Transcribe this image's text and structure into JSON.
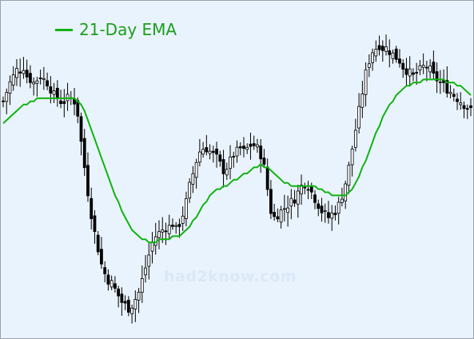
{
  "chart_data": {
    "type": "candlestick",
    "title": "",
    "xlabel": "",
    "ylabel": "",
    "grid": false,
    "legend_position": "top-left",
    "ylim": [
      0,
      100
    ],
    "ema_period": 21,
    "legend": {
      "label": "21-Day EMA"
    },
    "watermark": "had2know.com",
    "colors": {
      "background": "#e9f3fd",
      "border": "#9aa3ad",
      "candle": "#000000",
      "ema": "#11b311",
      "legend_text": "#1c9e1c",
      "watermark": "#dbe8f7"
    },
    "close_series": [
      73,
      76,
      79,
      81,
      83,
      83,
      84,
      81,
      80,
      79,
      80,
      81,
      80,
      79,
      77,
      75,
      74,
      73,
      73,
      74,
      74,
      73,
      69,
      60,
      52,
      44,
      37,
      31,
      26,
      21,
      18,
      16,
      15,
      13,
      11,
      9,
      8,
      7,
      8,
      10,
      12,
      16,
      20,
      24,
      28,
      30,
      31,
      32,
      33,
      33,
      34,
      32,
      34,
      37,
      41,
      46,
      50,
      54,
      57,
      58,
      58,
      57,
      56,
      55,
      53,
      51,
      52,
      54,
      56,
      57,
      58,
      57,
      58,
      59,
      59,
      58,
      56,
      52,
      45,
      38,
      36,
      37,
      38,
      39,
      40,
      41,
      42,
      44,
      46,
      47,
      46,
      44,
      42,
      40,
      38,
      37,
      36,
      37,
      38,
      40,
      43,
      47,
      52,
      58,
      64,
      70,
      76,
      82,
      86,
      89,
      90,
      91,
      90,
      90,
      89,
      88,
      87,
      86,
      84,
      83,
      82,
      81,
      82,
      83,
      84,
      84,
      83,
      81,
      80,
      79,
      78,
      77,
      76,
      75,
      74,
      73,
      72,
      71,
      70
    ],
    "ema_series": [
      66,
      67,
      68,
      69,
      70,
      71,
      72,
      72,
      73,
      73,
      74,
      74,
      74,
      74,
      74,
      74,
      74,
      74,
      74,
      74,
      74,
      74,
      73,
      72,
      70,
      67,
      64,
      61,
      58,
      55,
      52,
      49,
      46,
      43,
      41,
      38,
      36,
      34,
      32,
      31,
      30,
      29,
      29,
      28,
      28,
      28,
      29,
      29,
      29,
      29,
      30,
      30,
      30,
      31,
      32,
      33,
      35,
      36,
      38,
      40,
      41,
      43,
      44,
      45,
      45,
      46,
      46,
      47,
      48,
      48,
      49,
      50,
      50,
      51,
      52,
      52,
      53,
      52,
      52,
      51,
      50,
      49,
      48,
      47,
      47,
      46,
      46,
      46,
      46,
      46,
      46,
      46,
      46,
      45,
      45,
      44,
      44,
      43,
      43,
      43,
      43,
      43,
      44,
      45,
      47,
      49,
      52,
      54,
      57,
      60,
      63,
      65,
      68,
      70,
      72,
      73,
      75,
      76,
      77,
      78,
      78,
      79,
      79,
      79,
      80,
      80,
      80,
      80,
      80,
      80,
      80,
      79,
      79,
      79,
      78,
      78,
      77,
      76,
      75
    ]
  }
}
